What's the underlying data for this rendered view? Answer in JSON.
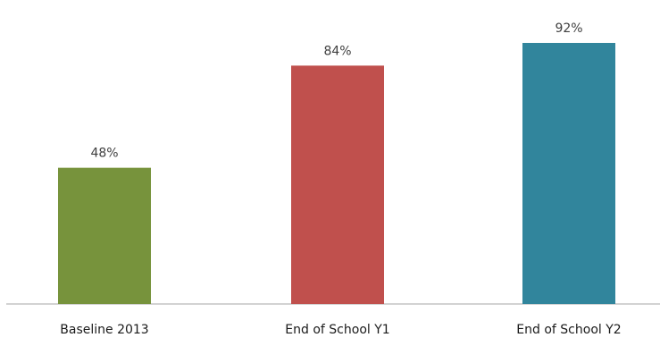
{
  "chart_data": {
    "type": "bar",
    "categories": [
      "Baseline 2013",
      "End of School Y1",
      "End of School Y2"
    ],
    "values": [
      48,
      84,
      92
    ],
    "data_labels": [
      "48%",
      "84%",
      "92%"
    ],
    "colors": [
      "#77933c",
      "#c0504d",
      "#31859c"
    ],
    "ylim": [
      0,
      100
    ],
    "grid": false,
    "legend": "none",
    "axis_color": "#a6a6a6"
  }
}
